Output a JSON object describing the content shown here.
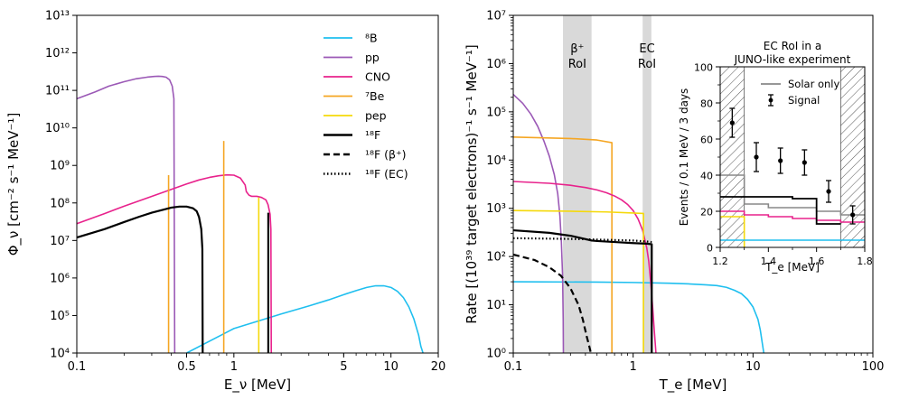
{
  "chart_data": [
    {
      "type": "line",
      "title": "",
      "xlabel": "E_ν [MeV]",
      "ylabel": "Φ_ν [cm⁻² s⁻¹ MeV⁻¹]",
      "xscale": "log",
      "yscale": "log",
      "xlim": [
        0.1,
        20
      ],
      "ylim": [
        10000,
        10000000000000
      ],
      "xticks": [
        0.1,
        0.5,
        1,
        5,
        10,
        20
      ],
      "xtick_labels": [
        "0.1",
        "0.5",
        "1",
        "5",
        "10",
        "20"
      ],
      "yticks": [
        10000,
        100000,
        1000000,
        10000000,
        100000000,
        1000000000,
        10000000000,
        100000000000,
        1000000000000,
        10000000000000
      ],
      "ytick_labels": [
        "10⁴",
        "10⁵",
        "10⁶",
        "10⁷",
        "10⁸",
        "10⁹",
        "10¹⁰",
        "10¹¹",
        "10¹²",
        "10¹³"
      ],
      "legend_position": "top-right",
      "series": [
        {
          "name": "⁸B",
          "color": "#1fbfef",
          "dash": "solid",
          "x": [
            0.5,
            1,
            2,
            3,
            4,
            5,
            6,
            7,
            8,
            9,
            10,
            11,
            12,
            13,
            14,
            15,
            15.5,
            16
          ],
          "y": [
            10000,
            45000,
            110000,
            180000,
            260000,
            360000,
            460000,
            560000,
            620000,
            620000,
            560000,
            440000,
            300000,
            170000,
            80000,
            30000,
            15000,
            10000
          ]
        },
        {
          "name": "pp",
          "color": "#9b59b6",
          "dash": "solid",
          "x": [
            0.1,
            0.13,
            0.16,
            0.2,
            0.24,
            0.28,
            0.31,
            0.33,
            0.35,
            0.37,
            0.39,
            0.405,
            0.415,
            0.42
          ],
          "y": [
            60000000000,
            90000000000,
            130000000000,
            170000000000,
            205000000000,
            225000000000,
            235000000000,
            238000000000,
            235000000000,
            225000000000,
            190000000000,
            130000000000,
            60000000000,
            10000
          ]
        },
        {
          "name": "CNO",
          "color": "#e8228c",
          "dash": "solid",
          "x": [
            0.1,
            0.15,
            0.2,
            0.3,
            0.4,
            0.5,
            0.6,
            0.7,
            0.8,
            0.9,
            1.0,
            1.1,
            1.18,
            1.2,
            1.25,
            1.3,
            1.4,
            1.5,
            1.6,
            1.65,
            1.7,
            1.72,
            1.73
          ],
          "y": [
            28000000,
            52000000,
            82000000,
            150000000,
            230000000,
            320000000,
            410000000,
            480000000,
            530000000,
            560000000,
            550000000,
            460000000,
            300000000,
            200000000,
            160000000,
            150000000,
            150000000,
            140000000,
            120000000,
            90000000,
            50000000,
            20000000,
            10000
          ]
        },
        {
          "name": "⁷Be",
          "color": "#f5a623",
          "dash": "solid",
          "lines": [
            {
              "x": 0.384,
              "y": 550000000
            },
            {
              "x": 0.862,
              "y": 4500000000
            }
          ]
        },
        {
          "name": "pep",
          "color": "#f5d90a",
          "dash": "solid",
          "lines": [
            {
              "x": 1.44,
              "y": 140000000
            }
          ]
        },
        {
          "name": "¹⁸F",
          "color": "#000000",
          "dash": "solid",
          "x": [
            0.1,
            0.15,
            0.2,
            0.25,
            0.3,
            0.35,
            0.4,
            0.45,
            0.5,
            0.55,
            0.58,
            0.6,
            0.62,
            0.63,
            0.633
          ],
          "y": [
            12000000,
            20000000,
            31000000,
            43000000,
            55000000,
            65000000,
            75000000,
            80000000,
            80000000,
            72000000,
            60000000,
            42000000,
            20000000,
            6000000,
            10000
          ],
          "lines": [
            {
              "x": 1.656,
              "y": 55000000
            }
          ]
        },
        {
          "name": "¹⁸F (β⁺)",
          "color": "#000000",
          "dash": "dashed",
          "x": [],
          "y": []
        },
        {
          "name": "¹⁸F (EC)",
          "color": "#000000",
          "dash": "dotted",
          "x": [],
          "y": []
        }
      ]
    },
    {
      "type": "line",
      "title": "",
      "xlabel": "T_e [MeV]",
      "ylabel": "Rate [(10³⁹ target electrons)⁻¹ s⁻¹ MeV⁻¹]",
      "xscale": "log",
      "yscale": "log",
      "xlim": [
        0.1,
        100
      ],
      "ylim": [
        1,
        10000000
      ],
      "xticks": [
        0.1,
        1,
        10,
        100
      ],
      "xtick_labels": [
        "0.1",
        "1",
        "10",
        "100"
      ],
      "yticks": [
        1,
        10,
        100,
        1000,
        10000,
        100000,
        1000000,
        10000000
      ],
      "ytick_labels": [
        "10⁰",
        "10¹",
        "10²",
        "10³",
        "10⁴",
        "10⁵",
        "10⁶",
        "10⁷"
      ],
      "shaded_regions": [
        {
          "label_lines": [
            "β⁺",
            "RoI"
          ],
          "xmin": 0.26,
          "xmax": 0.45,
          "color": "#d9d9d9"
        },
        {
          "label_lines": [
            "EC",
            "RoI"
          ],
          "xmin": 1.2,
          "xmax": 1.42,
          "color": "#d9d9d9"
        }
      ],
      "series": [
        {
          "name": "⁸B",
          "color": "#1fbfef",
          "dash": "solid",
          "x": [
            0.1,
            0.5,
            1,
            2,
            3,
            4,
            5,
            6,
            7,
            8,
            9,
            10,
            11,
            11.5,
            12,
            12.3
          ],
          "y": [
            30,
            29.5,
            29,
            28,
            27,
            26,
            25,
            23,
            20,
            17,
            13,
            9,
            5,
            3,
            1.5,
            1
          ]
        },
        {
          "name": "pp",
          "color": "#9b59b6",
          "dash": "solid",
          "x": [
            0.1,
            0.12,
            0.14,
            0.16,
            0.18,
            0.2,
            0.22,
            0.235,
            0.245,
            0.252,
            0.258,
            0.261,
            0.262
          ],
          "y": [
            230000,
            150000,
            90000,
            50000,
            25000,
            12000,
            5000,
            2000,
            700,
            200,
            40,
            5,
            1
          ]
        },
        {
          "name": "⁷Be",
          "color": "#f5a623",
          "dash": "solid",
          "x": [
            0.1,
            0.3,
            0.5,
            0.66,
            0.665,
            0.665
          ],
          "y": [
            30000,
            28000,
            26000,
            23000,
            23000,
            1
          ]
        },
        {
          "name": "CNO",
          "color": "#e8228c",
          "dash": "solid",
          "x": [
            0.1,
            0.2,
            0.3,
            0.4,
            0.5,
            0.6,
            0.7,
            0.8,
            0.9,
            1.0,
            1.1,
            1.2,
            1.3,
            1.35,
            1.4,
            1.45,
            1.5,
            1.55
          ],
          "y": [
            3600,
            3300,
            3000,
            2700,
            2400,
            2100,
            1800,
            1500,
            1200,
            900,
            600,
            350,
            150,
            80,
            30,
            10,
            3,
            1
          ]
        },
        {
          "name": "pep",
          "color": "#f5d90a",
          "dash": "solid",
          "x": [
            0.1,
            0.3,
            0.6,
            1.0,
            1.22,
            1.22
          ],
          "y": [
            900,
            870,
            840,
            800,
            780,
            1
          ]
        },
        {
          "name": "¹⁸F",
          "color": "#000000",
          "dash": "solid",
          "x": [
            0.1,
            0.2,
            0.3,
            0.4,
            0.45,
            0.5,
            0.7,
            1.0,
            1.3,
            1.43,
            1.43
          ],
          "y": [
            350,
            310,
            270,
            230,
            215,
            210,
            200,
            190,
            185,
            180,
            1
          ]
        },
        {
          "name": "¹⁸F (β⁺)",
          "color": "#000000",
          "dash": "dashed",
          "x": [
            0.1,
            0.15,
            0.2,
            0.25,
            0.3,
            0.35,
            0.38,
            0.41,
            0.43,
            0.44,
            0.445
          ],
          "y": [
            110,
            85,
            60,
            40,
            22,
            10,
            5,
            2.2,
            1.4,
            1.1,
            1
          ]
        },
        {
          "name": "¹⁸F (EC)",
          "color": "#000000",
          "dash": "dotted",
          "x": [
            0.1,
            0.3,
            0.5,
            1.0,
            1.3,
            1.43
          ],
          "y": [
            240,
            232,
            225,
            215,
            205,
            200
          ]
        }
      ]
    },
    {
      "type": "line",
      "title": "EC RoI in a JUNO-like experiment",
      "title_lines": [
        "EC RoI in a",
        "JUNO-like experiment"
      ],
      "xlabel": "T_e [MeV]",
      "ylabel": "Events / 0.1 MeV / 3 days",
      "xlim": [
        1.2,
        1.8
      ],
      "ylim": [
        0,
        100
      ],
      "xticks": [
        1.2,
        1.4,
        1.6,
        1.8
      ],
      "xtick_labels": [
        "1.2",
        "1.4",
        "1.6",
        "1.8"
      ],
      "yticks": [
        0,
        20,
        40,
        60,
        80,
        100
      ],
      "ytick_labels": [
        "0",
        "20",
        "40",
        "60",
        "80",
        "100"
      ],
      "hatched_regions": [
        {
          "xmin": 1.2,
          "xmax": 1.3
        },
        {
          "xmin": 1.7,
          "xmax": 1.8
        }
      ],
      "series": [
        {
          "name": "Solar only",
          "color": "#888888",
          "dash": "solid",
          "type": "step",
          "x": [
            1.2,
            1.3,
            1.4,
            1.5,
            1.6,
            1.7,
            1.8
          ],
          "y": [
            40,
            24,
            22,
            22,
            20,
            18,
            18
          ]
        },
        {
          "name": "pep",
          "color": "#f5d90a",
          "dash": "solid",
          "type": "step",
          "x": [
            1.2,
            1.3,
            1.3
          ],
          "y": [
            17,
            17,
            0
          ]
        },
        {
          "name": "CNO",
          "color": "#e8228c",
          "dash": "solid",
          "type": "step",
          "x": [
            1.2,
            1.3,
            1.4,
            1.5,
            1.6,
            1.7,
            1.8
          ],
          "y": [
            20,
            18,
            17,
            16,
            15,
            14,
            14
          ]
        },
        {
          "name": "¹⁸F",
          "color": "#000000",
          "dash": "solid",
          "type": "step",
          "x": [
            1.2,
            1.3,
            1.4,
            1.5,
            1.6,
            1.7
          ],
          "y": [
            28,
            28,
            28,
            27,
            13,
            13
          ]
        },
        {
          "name": "⁸B",
          "color": "#1fbfef",
          "dash": "solid",
          "type": "step",
          "x": [
            1.2,
            1.8
          ],
          "y": [
            4,
            4
          ]
        },
        {
          "name": "Signal",
          "color": "#000000",
          "type": "errorbar",
          "x": [
            1.25,
            1.35,
            1.45,
            1.55,
            1.65,
            1.75
          ],
          "y": [
            69,
            50,
            48,
            47,
            31,
            18
          ],
          "yerr": [
            8,
            8,
            7,
            7,
            6,
            5
          ]
        }
      ]
    }
  ]
}
